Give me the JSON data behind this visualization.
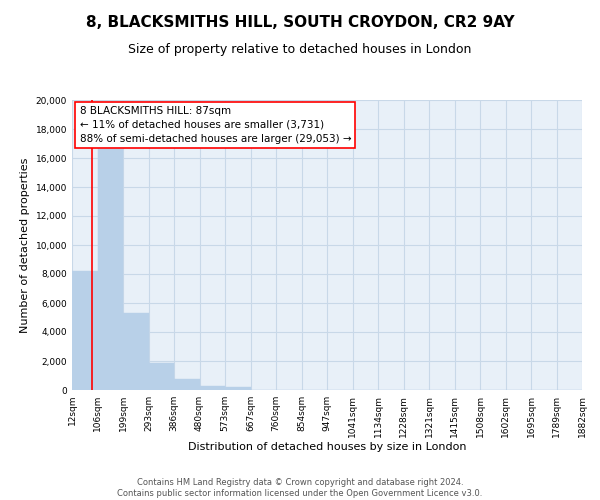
{
  "title": "8, BLACKSMITHS HILL, SOUTH CROYDON, CR2 9AY",
  "subtitle": "Size of property relative to detached houses in London",
  "xlabel": "Distribution of detached houses by size in London",
  "ylabel": "Number of detached properties",
  "bin_labels": [
    "12sqm",
    "106sqm",
    "199sqm",
    "293sqm",
    "386sqm",
    "480sqm",
    "573sqm",
    "667sqm",
    "760sqm",
    "854sqm",
    "947sqm",
    "1041sqm",
    "1134sqm",
    "1228sqm",
    "1321sqm",
    "1415sqm",
    "1508sqm",
    "1602sqm",
    "1695sqm",
    "1789sqm",
    "1882sqm"
  ],
  "bar_values": [
    8200,
    16600,
    5300,
    1850,
    780,
    280,
    230,
    0,
    0,
    0,
    0,
    0,
    0,
    0,
    0,
    0,
    0,
    0,
    0,
    0
  ],
  "bar_color": "#b8d0e8",
  "bar_edge_color": "#b8d0e8",
  "grid_color": "#c8d8e8",
  "background_color": "#e8f0f8",
  "ylim": [
    0,
    20000
  ],
  "yticks": [
    0,
    2000,
    4000,
    6000,
    8000,
    10000,
    12000,
    14000,
    16000,
    18000,
    20000
  ],
  "annotation_box_text_line1": "8 BLACKSMITHS HILL: 87sqm",
  "annotation_box_text_line2": "← 11% of detached houses are smaller (3,731)",
  "annotation_box_text_line3": "88% of semi-detached houses are larger (29,053) →",
  "footer_line1": "Contains HM Land Registry data © Crown copyright and database right 2024.",
  "footer_line2": "Contains public sector information licensed under the Open Government Licence v3.0.",
  "title_fontsize": 11,
  "subtitle_fontsize": 9,
  "axis_label_fontsize": 8,
  "tick_fontsize": 6.5,
  "annotation_fontsize": 7.5,
  "footer_fontsize": 6
}
